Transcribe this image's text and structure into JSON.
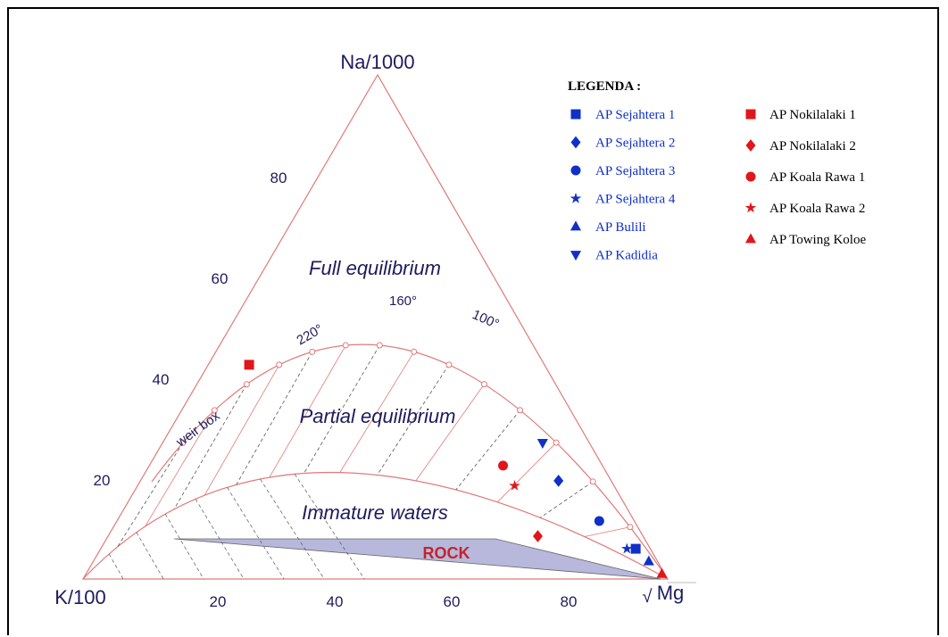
{
  "chart_data": {
    "type": "ternary-scatter",
    "vertices": {
      "top": "Na/1000",
      "left": "K/100",
      "right": "Mg"
    },
    "right_prefix": "√",
    "na_ticks": [
      "20",
      "40",
      "60",
      "80"
    ],
    "k_ticks": [
      "20",
      "40",
      "60",
      "80"
    ],
    "regions": {
      "full": "Full equilibrium",
      "partial": "Partial  equilibrium",
      "immature": "Immature waters",
      "rock": "ROCK",
      "weir": "weir box"
    },
    "isotherms": [
      "220°",
      "160°",
      "100°"
    ],
    "legend_title": "LEGENDA :",
    "colors": {
      "blue": "#1030c8",
      "red": "#e0161b",
      "lines": "#e07a7a",
      "text": "#1e1b5e",
      "rock": "#b8b8dc"
    },
    "series": [
      {
        "name": "AP Sejahtera 1",
        "marker": "square",
        "color": "blue",
        "k": 2.5,
        "na": 6.0
      },
      {
        "name": "AP Sejahtera 2",
        "marker": "diamond",
        "color": "blue",
        "k": 9.0,
        "na": 19.5
      },
      {
        "name": "AP Sejahtera 3",
        "marker": "circle",
        "color": "blue",
        "k": 6.0,
        "na": 11.5
      },
      {
        "name": "AP Sejahtera 4",
        "marker": "star",
        "color": "blue",
        "k": 4.0,
        "na": 6.0
      },
      {
        "name": "AP Bulili",
        "marker": "triangle",
        "color": "blue",
        "k": 1.5,
        "na": 3.5
      },
      {
        "name": "AP Kadidia",
        "marker": "triangle-down",
        "color": "blue",
        "k": 8.0,
        "na": 27.0
      },
      {
        "name": "AP Nokilalaki 1",
        "marker": "square",
        "color": "red",
        "k": 50.5,
        "na": 42.5
      },
      {
        "name": "AP Nokilalaki 2",
        "marker": "diamond",
        "color": "red",
        "k": 18.0,
        "na": 8.5
      },
      {
        "name": "AP Koala Rawa 1",
        "marker": "circle",
        "color": "red",
        "k": 17.0,
        "na": 22.5
      },
      {
        "name": "AP Koala Rawa 2",
        "marker": "star",
        "color": "red",
        "k": 17.0,
        "na": 18.5
      },
      {
        "name": "AP Towing Koloe",
        "marker": "triangle",
        "color": "red",
        "k": 0.5,
        "na": 1.0
      }
    ]
  }
}
